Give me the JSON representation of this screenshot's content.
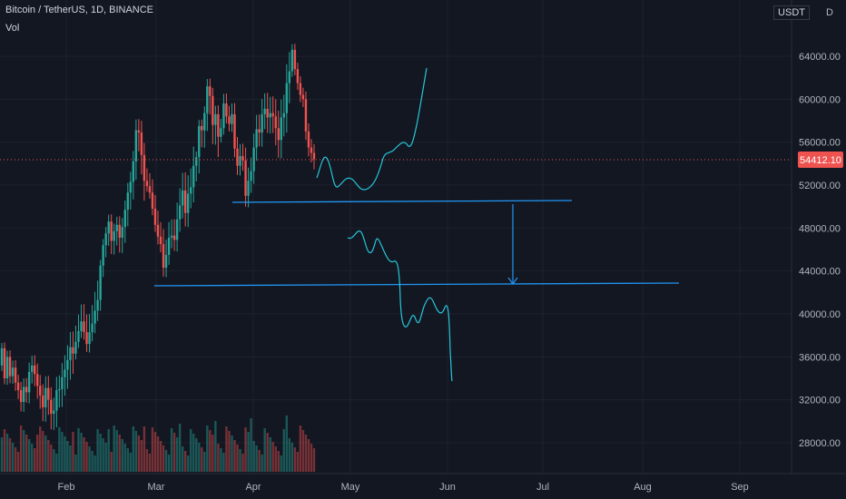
{
  "header": {
    "title": "Bitcoin / TetherUS, 1D, BINANCE",
    "volume_label": "Vol",
    "unit": "USDT",
    "scale_top_digit": "6",
    "scale_letter": "D"
  },
  "colors": {
    "background": "#131722",
    "grid": "#1e222d",
    "up": "#26a69a",
    "down": "#ef5350",
    "drawing": "#2196f3",
    "path": "#26c6da",
    "price_badge": "#ef5350"
  },
  "chart_data": {
    "type": "candlestick",
    "title": "Bitcoin / TetherUS, 1D, BINANCE",
    "price_axis": {
      "ticks": [
        "64000.00",
        "60000.00",
        "56000.00",
        "52000.00",
        "48000.00",
        "44000.00",
        "40000.00",
        "36000.00",
        "32000.00",
        "28000.00"
      ],
      "range": [
        25000,
        66200
      ]
    },
    "time_axis": {
      "ticks": [
        "Feb",
        "Mar",
        "Apr",
        "May",
        "Jun",
        "Jul",
        "Aug",
        "Sep"
      ]
    },
    "current_price": "54412.10",
    "current_price_value": 54412.1,
    "horizontal_levels": [
      50500,
      42700
    ],
    "arrow": {
      "from": 50500,
      "to": 42700
    },
    "candle_closes": [
      36800,
      34000,
      36000,
      34200,
      35000,
      33600,
      32900,
      31800,
      33200,
      32700,
      34600,
      35200,
      34400,
      33300,
      32400,
      31300,
      33100,
      32000,
      30700,
      31000,
      32900,
      33000,
      34100,
      34800,
      35700,
      36900,
      36300,
      37400,
      38400,
      39300,
      38300,
      37200,
      38300,
      39100,
      40300,
      41300,
      44500,
      46400,
      47500,
      48600,
      46800,
      47700,
      48300,
      47100,
      48100,
      49700,
      51300,
      52300,
      54200,
      57100,
      56900,
      54800,
      52400,
      51900,
      51300,
      49800,
      48300,
      47200,
      46500,
      44300,
      45500,
      47100,
      47300,
      46900,
      48800,
      50100,
      51500,
      49400,
      51200,
      51800,
      53800,
      54600,
      57500,
      57100,
      58700,
      61200,
      60300,
      57600,
      58600,
      56500,
      57300,
      59600,
      58400,
      57700,
      58600,
      55400,
      53800,
      54700,
      54300,
      51000,
      52400,
      53300,
      55500,
      57200,
      56900,
      58600,
      59100,
      58300,
      58700,
      58400,
      57300,
      56200,
      58300,
      58700,
      61500,
      62600,
      64600,
      62800,
      61500,
      60400,
      60000,
      57000,
      55500,
      55000,
      54412
    ]
  }
}
